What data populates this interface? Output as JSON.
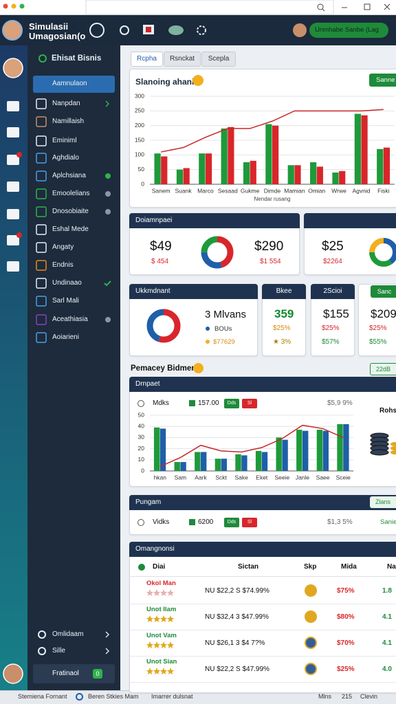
{
  "header": {
    "title_line1": "Simulasii",
    "title_line2": "Umagosian(o",
    "status_pill": "Unmhabe Sanbe (Lag"
  },
  "sidebar": {
    "heading": "Ehisat Bisnis",
    "items": [
      "Aamnulaon",
      "Nanpdan",
      "Namillaish",
      "Eminiml",
      "Aghdialo",
      "Aplchsiana",
      "Emoolelians",
      "Dnosobiaite",
      "Eshal Mede",
      "Angaty",
      "Endnis",
      "Undinaao",
      "Sarl Mali",
      "Aceathiasia",
      "Aoiarieni"
    ],
    "bottom_items": [
      "Omlidaam",
      "Sille"
    ],
    "profile": "Fratinaol",
    "profile_badge": "0"
  },
  "tabs": [
    "Rcpha",
    "Rsnckat",
    "Scepla"
  ],
  "sales_chart": {
    "title": "Slanoing ahanie",
    "button": "Sanne",
    "type": "bar",
    "x_label": "Nendar rusang",
    "categories": [
      "Sanem",
      "Suank",
      "Marco",
      "Sesaad",
      "Gukme",
      "Dimde",
      "Mamian",
      "Omian",
      "Wrwe",
      "Agvnid",
      "Fiski"
    ],
    "series": [
      {
        "color": "#1e9a3a",
        "values": [
          105,
          50,
          105,
          190,
          75,
          205,
          65,
          75,
          40,
          240,
          120
        ]
      },
      {
        "color": "#d8262b",
        "values": [
          95,
          55,
          105,
          195,
          80,
          200,
          65,
          60,
          45,
          235,
          125
        ]
      },
      {
        "type": "line",
        "color": "#c62828",
        "values": [
          110,
          125,
          160,
          190,
          190,
          215,
          250,
          250,
          250,
          250,
          255
        ]
      }
    ],
    "ylim": [
      0,
      300
    ],
    "yticks": [
      0,
      50,
      100,
      150,
      200,
      250,
      300
    ],
    "grid": true
  },
  "summary_row1": [
    {
      "title": "Doiamnpaei",
      "items": [
        {
          "value": "$49",
          "sub": "$ 454"
        },
        {
          "value": "$290",
          "sub": "$1 554"
        }
      ],
      "donut": {
        "values": [
          45,
          30,
          25
        ],
        "colors": [
          "#d8262b",
          "#1f5fa8",
          "#1e9a3a"
        ]
      }
    },
    {
      "items": [
        {
          "value": "$25",
          "sub": "$2264"
        }
      ],
      "donut": {
        "values": [
          40,
          35,
          25
        ],
        "colors": [
          "#1f5fa8",
          "#1e9a3a",
          "#f2b01e"
        ]
      }
    }
  ],
  "summary_row2": [
    {
      "title": "Ukkmdnant",
      "big": "3 Mlvans",
      "lines": [
        "BOUs",
        "$77629"
      ],
      "donut": {
        "values": [
          55,
          45
        ],
        "colors": [
          "#d8262b",
          "#1f5fa8"
        ]
      }
    },
    {
      "title": "Bkee",
      "big": "359",
      "lines": [
        "$25%",
        "★ 3%"
      ]
    },
    {
      "title": "2Scioi",
      "big": "$155",
      "lines": [
        "$25%",
        "$57%"
      ]
    },
    {
      "title": "Sanc",
      "big": "$209",
      "lines": [
        "$25%",
        "$55%"
      ]
    }
  ],
  "performance": {
    "heading": "Pemacey Bidmen",
    "pill": "22dB",
    "panel1": {
      "title": "Drnpaet",
      "label": "Mdks",
      "amount": "157.00",
      "btn1": "Dds",
      "btn2": "Sl",
      "pct": "$5,9 9%",
      "side_label": "Rohs",
      "chart": {
        "type": "bar",
        "categories": [
          "hkan",
          "Sam",
          "Aark",
          "Sckt",
          "Sake",
          "Eket",
          "Seeie",
          "Janle",
          "Saee",
          "Sceie"
        ],
        "series": [
          {
            "color": "#1e9a3a",
            "values": [
              39,
              8,
              17,
              11,
              15,
              18,
              30,
              37,
              37,
              42
            ]
          },
          {
            "color": "#1f5fa8",
            "values": [
              38,
              8,
              17,
              11,
              14,
              17,
              28,
              36,
              36,
              42
            ]
          },
          {
            "type": "line",
            "color": "#c62828",
            "values": [
              4,
              12,
              23,
              18,
              17,
              21,
              29,
              41,
              38,
              30
            ]
          }
        ],
        "ylim": [
          0,
          50
        ],
        "yticks": [
          0,
          10,
          20,
          30,
          40,
          50
        ],
        "grid": true
      }
    },
    "panel2": {
      "title": "Pungam",
      "pill": "Zlans",
      "label": "Vidks",
      "amount": "6200",
      "btn1": "Dds",
      "btn2": "Sl",
      "pct": "$1,3 5%",
      "side_label": "Sanie"
    }
  },
  "table": {
    "title": "Omangnonsi",
    "columns": [
      "Diai",
      "Sictan",
      "Skp",
      "Mida",
      "Na"
    ],
    "rows": [
      {
        "name": "Okol Man",
        "stars": 4,
        "price": "NU $22,2 S $74.99%",
        "pct": "$75%",
        "na": "1.8"
      },
      {
        "name": "Unot Ilam",
        "stars": 4,
        "price": "NU $32,4 3 $47.99%",
        "pct": "$80%",
        "na": "4.1"
      },
      {
        "name": "Unot Vam",
        "stars": 4,
        "price": "NU $26,1 3 $4 7?%",
        "pct": "$70%",
        "na": "4.1"
      },
      {
        "name": "Unot Sian",
        "stars": 4,
        "price": "NU $22,2 S $47.99%",
        "pct": "$25%",
        "na": "4.0"
      }
    ]
  },
  "footer": [
    "Stemiena Fornant",
    "Beren Stkies Mam",
    "Imarrer dulsnat",
    "Mlns",
    "215",
    "Clevin"
  ]
}
